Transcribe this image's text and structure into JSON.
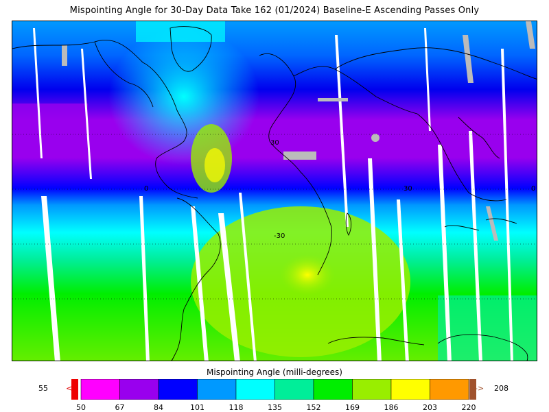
{
  "title": "Mispointing Angle for 30-Day Data Take 162 (01/2024) Baseline-E Ascending Passes Only",
  "legend": {
    "title": "Mispointing Angle (milli-degrees)",
    "min_value": "55",
    "max_value": "208",
    "under_arrow": "<",
    "over_arrow": "->",
    "ticks": [
      "50",
      "67",
      "84",
      "101",
      "118",
      "135",
      "152",
      "169",
      "186",
      "203",
      "220"
    ],
    "colors": [
      "#ff00ff",
      "#9900ee",
      "#0000ff",
      "#0099ff",
      "#00ffff",
      "#00ee99",
      "#00ee00",
      "#99ee00",
      "#ffff00",
      "#ff9900"
    ],
    "under_color": "#ee0000",
    "over_color": "#a0522d"
  },
  "map": {
    "lat_labels": [
      "30",
      "0",
      "-30",
      "30",
      "0"
    ],
    "missing_color": "#bbbbbb",
    "background": "#ffffff"
  }
}
